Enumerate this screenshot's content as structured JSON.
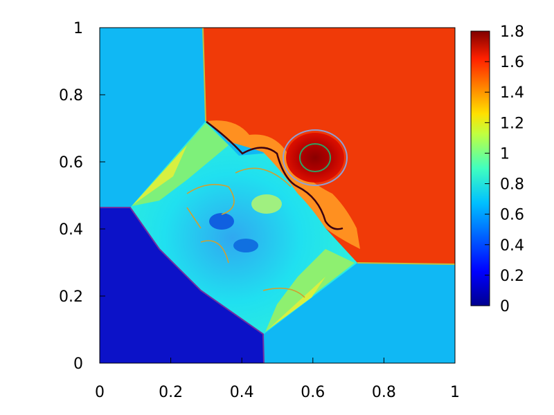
{
  "chart_data": {
    "type": "heatmap",
    "title": "",
    "xlabel": "",
    "ylabel": "",
    "xlim": [
      0,
      1
    ],
    "ylim": [
      0,
      1
    ],
    "x_ticks": [
      "0",
      "0.2",
      "0.4",
      "0.6",
      "0.8",
      "1"
    ],
    "y_ticks": [
      "0",
      "0.2",
      "0.4",
      "0.6",
      "0.8",
      "1"
    ],
    "colorbar": {
      "range": [
        0,
        1.8
      ],
      "ticks": [
        "0",
        "0.2",
        "0.4",
        "0.6",
        "0.8",
        "1",
        "1.2",
        "1.4",
        "1.6",
        "1.8"
      ],
      "colormap": [
        "#00008f",
        "#0000ff",
        "#0080ff",
        "#00ffff",
        "#80ff80",
        "#ffff00",
        "#ff8000",
        "#ff0000",
        "#800000"
      ]
    },
    "quadrant_values": {
      "top_left": 0.55,
      "top_right": 1.5,
      "bottom_left": 0.14,
      "bottom_right": 0.55,
      "center": 0.65,
      "peak_near_0.61_0.61": 1.75
    }
  }
}
